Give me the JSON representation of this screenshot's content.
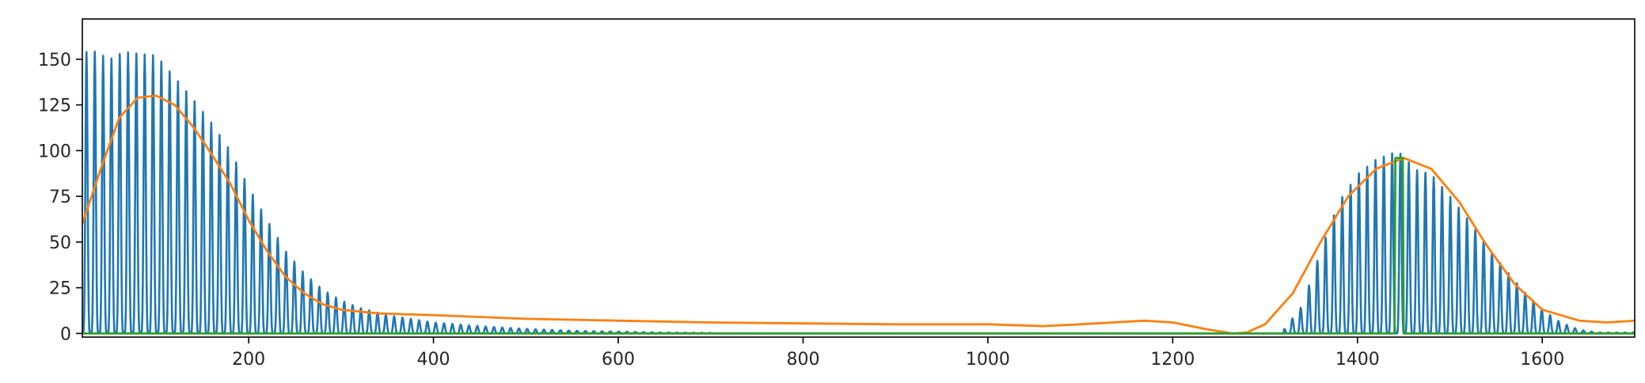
{
  "chart_data": {
    "type": "line",
    "title": "",
    "xlabel": "",
    "ylabel": "",
    "xlim": [
      20,
      1700
    ],
    "ylim": [
      -2,
      172
    ],
    "x_ticks": [
      200,
      400,
      600,
      800,
      1000,
      1200,
      1400,
      1600
    ],
    "x_tick_labels": [
      "200",
      "400",
      "600",
      "800",
      "1000",
      "1200",
      "1400",
      "1600"
    ],
    "y_ticks": [
      0,
      25,
      50,
      75,
      100,
      125,
      150
    ],
    "y_tick_labels": [
      "0",
      "25",
      "50",
      "75",
      "100",
      "125",
      "150"
    ],
    "grid": false,
    "legend": "none",
    "series": [
      {
        "color": "#1f77b4",
        "style": "oscillating comb (rapid peaks between 0 and envelope)",
        "period": 9,
        "envelope_x": [
          20,
          30,
          50,
          65,
          80,
          100,
          120,
          140,
          160,
          180,
          200,
          220,
          240,
          260,
          280,
          300,
          320,
          350,
          400,
          450,
          500,
          550,
          600,
          650,
          700,
          1320,
          1340,
          1360,
          1380,
          1400,
          1420,
          1440,
          1450,
          1460,
          1480,
          1500,
          1520,
          1540,
          1560,
          1580,
          1600,
          1620,
          1640,
          1660
        ],
        "envelope_y": [
          153,
          155,
          150,
          154,
          153,
          152,
          140,
          128,
          115,
          100,
          80,
          62,
          45,
          33,
          24,
          18,
          14,
          10,
          6,
          4,
          2.5,
          1.5,
          1,
          0.5,
          0.3,
          2,
          15,
          45,
          72,
          87,
          95,
          99,
          98,
          90,
          87,
          75,
          62,
          48,
          35,
          23,
          13,
          6,
          2,
          0.5
        ]
      },
      {
        "color": "#ff7f0e",
        "style": "smooth envelope",
        "x": [
          20,
          40,
          60,
          80,
          100,
          120,
          140,
          160,
          180,
          200,
          220,
          240,
          260,
          280,
          300,
          340,
          400,
          500,
          600,
          700,
          800,
          900,
          1000,
          1060,
          1100,
          1170,
          1200,
          1240,
          1265,
          1280,
          1300,
          1330,
          1360,
          1390,
          1420,
          1450,
          1480,
          1510,
          1540,
          1570,
          1600,
          1640,
          1670,
          1700
        ],
        "y": [
          60,
          90,
          118,
          129,
          130,
          125,
          113,
          98,
          82,
          62,
          45,
          31,
          22,
          16,
          13,
          11,
          10,
          8,
          7,
          6,
          5.5,
          5,
          5,
          4,
          5,
          7,
          6,
          2,
          0,
          0.5,
          5,
          22,
          50,
          75,
          90,
          96,
          90,
          72,
          48,
          27,
          13,
          7,
          6,
          7
        ]
      },
      {
        "color": "#2ca02c",
        "style": "baseline with single spike",
        "x": [
          20,
          1440,
          1441,
          1449,
          1450,
          1700
        ],
        "y": [
          0,
          0,
          96,
          96,
          0,
          0
        ]
      }
    ]
  }
}
